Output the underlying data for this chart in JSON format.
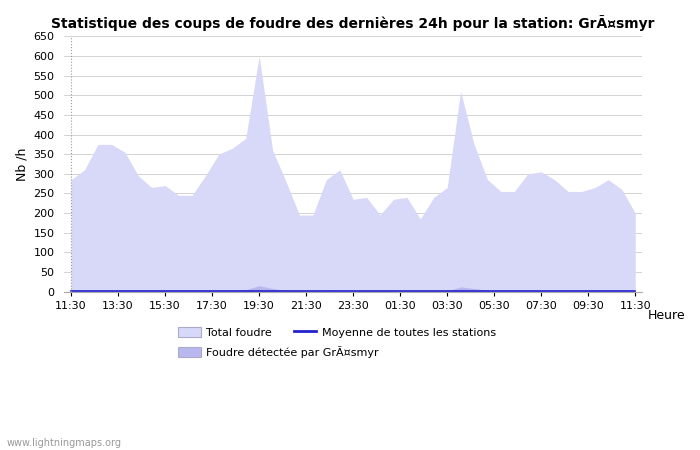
{
  "title": "Statistique des coups de foudre des dernières 24h pour la station: GrÃ¤smyr",
  "xlabel": "Heure",
  "ylabel": "Nb /h",
  "x_ticks": [
    "11:30",
    "13:30",
    "15:30",
    "17:30",
    "19:30",
    "21:30",
    "23:30",
    "01:30",
    "03:30",
    "05:30",
    "07:30",
    "09:30",
    "11:30"
  ],
  "ylim": [
    0,
    650
  ],
  "yticks": [
    0,
    50,
    100,
    150,
    200,
    250,
    300,
    350,
    400,
    450,
    500,
    550,
    600,
    650
  ],
  "fill_color_light": "#d8d8f8",
  "fill_color_dark": "#b8b8ee",
  "line_color": "#2222cc",
  "background_color": "#ffffff",
  "grid_color": "#cccccc",
  "watermark": "www.lightningmaps.org",
  "legend_total": "Total foudre",
  "legend_moyenne": "Moyenne de toutes les stations",
  "legend_detected": "Foudre détectée par GrÃ¤smyr",
  "total_foudre": [
    285,
    310,
    375,
    375,
    355,
    295,
    265,
    270,
    245,
    245,
    295,
    350,
    365,
    390,
    600,
    360,
    280,
    195,
    195,
    285,
    310,
    235,
    240,
    195,
    235,
    240,
    185,
    240,
    265,
    510,
    375,
    285,
    255,
    255,
    300,
    305,
    285,
    255,
    255,
    265,
    285,
    260,
    200
  ],
  "detected_foudre": [
    3,
    3,
    3,
    3,
    3,
    3,
    3,
    3,
    3,
    3,
    3,
    3,
    3,
    5,
    15,
    8,
    3,
    2,
    2,
    3,
    3,
    2,
    2,
    2,
    2,
    2,
    2,
    2,
    2,
    12,
    8,
    3,
    3,
    3,
    3,
    3,
    3,
    3,
    3,
    3,
    3,
    3,
    3
  ],
  "moyenne": [
    1,
    1,
    1,
    1,
    1,
    1,
    1,
    1,
    1,
    1,
    1,
    1,
    1,
    1,
    1,
    1,
    1,
    1,
    1,
    1,
    1,
    1,
    1,
    1,
    1,
    1,
    1,
    1,
    1,
    1,
    1,
    1,
    1,
    1,
    1,
    1,
    1,
    1,
    1,
    1,
    1,
    1,
    1
  ]
}
